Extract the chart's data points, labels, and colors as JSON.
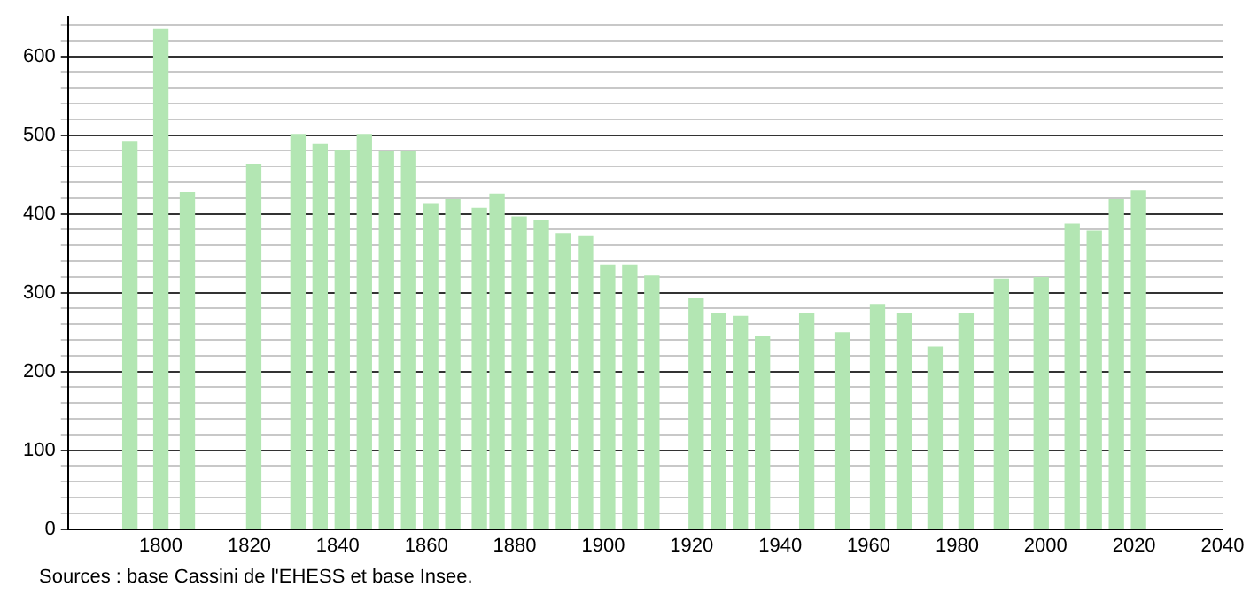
{
  "chart_data": {
    "type": "bar",
    "x": [
      1793,
      1800,
      1806,
      1821,
      1831,
      1836,
      1841,
      1846,
      1851,
      1856,
      1861,
      1866,
      1872,
      1876,
      1881,
      1886,
      1891,
      1896,
      1901,
      1906,
      1911,
      1921,
      1926,
      1931,
      1936,
      1946,
      1954,
      1962,
      1968,
      1975,
      1982,
      1990,
      1999,
      2006,
      2011,
      2016,
      2021
    ],
    "values": [
      492,
      634,
      427,
      463,
      501,
      488,
      481,
      501,
      479,
      479,
      413,
      418,
      407,
      425,
      396,
      391,
      375,
      371,
      335,
      335,
      321,
      292,
      274,
      270,
      245,
      274,
      249,
      285,
      274,
      231,
      274,
      317,
      319,
      387,
      378,
      418,
      429
    ],
    "color": "#b3e6b3",
    "xlim": [
      1779,
      2040
    ],
    "xticks": [
      1800,
      1820,
      1840,
      1860,
      1880,
      1900,
      1920,
      1940,
      1960,
      1980,
      2000,
      2020,
      2040
    ],
    "ylim": [
      0,
      650
    ],
    "yticks": [
      0,
      {
        "value": 20,
        "label": null
      },
      {
        "value": 40,
        "label": null
      },
      {
        "value": 60,
        "label": null
      },
      {
        "value": 80,
        "label": null
      },
      100,
      {
        "value": 120,
        "label": null
      },
      {
        "value": 140,
        "label": null
      },
      {
        "value": 160,
        "label": null
      },
      {
        "value": 180,
        "label": null
      },
      200,
      {
        "value": 220,
        "label": null
      },
      {
        "value": 240,
        "label": null
      },
      {
        "value": 260,
        "label": null
      },
      {
        "value": 280,
        "label": null
      },
      300,
      {
        "value": 320,
        "label": null
      },
      {
        "value": 340,
        "label": null
      },
      {
        "value": 360,
        "label": null
      },
      {
        "value": 380,
        "label": null
      },
      400,
      {
        "value": 420,
        "label": null
      },
      {
        "value": 440,
        "label": null
      },
      {
        "value": 460,
        "label": null
      },
      {
        "value": 480,
        "label": null
      },
      500,
      {
        "value": 520,
        "label": null
      },
      {
        "value": 540,
        "label": null
      },
      {
        "value": 560,
        "label": null
      },
      {
        "value": 580,
        "label": null
      },
      600,
      {
        "value": 620,
        "label": null
      },
      {
        "value": 640,
        "label": null
      }
    ],
    "grid": "y",
    "legend": false,
    "annotations": [
      "Sources : base Cassini de l'EHESS et base Insee."
    ]
  }
}
